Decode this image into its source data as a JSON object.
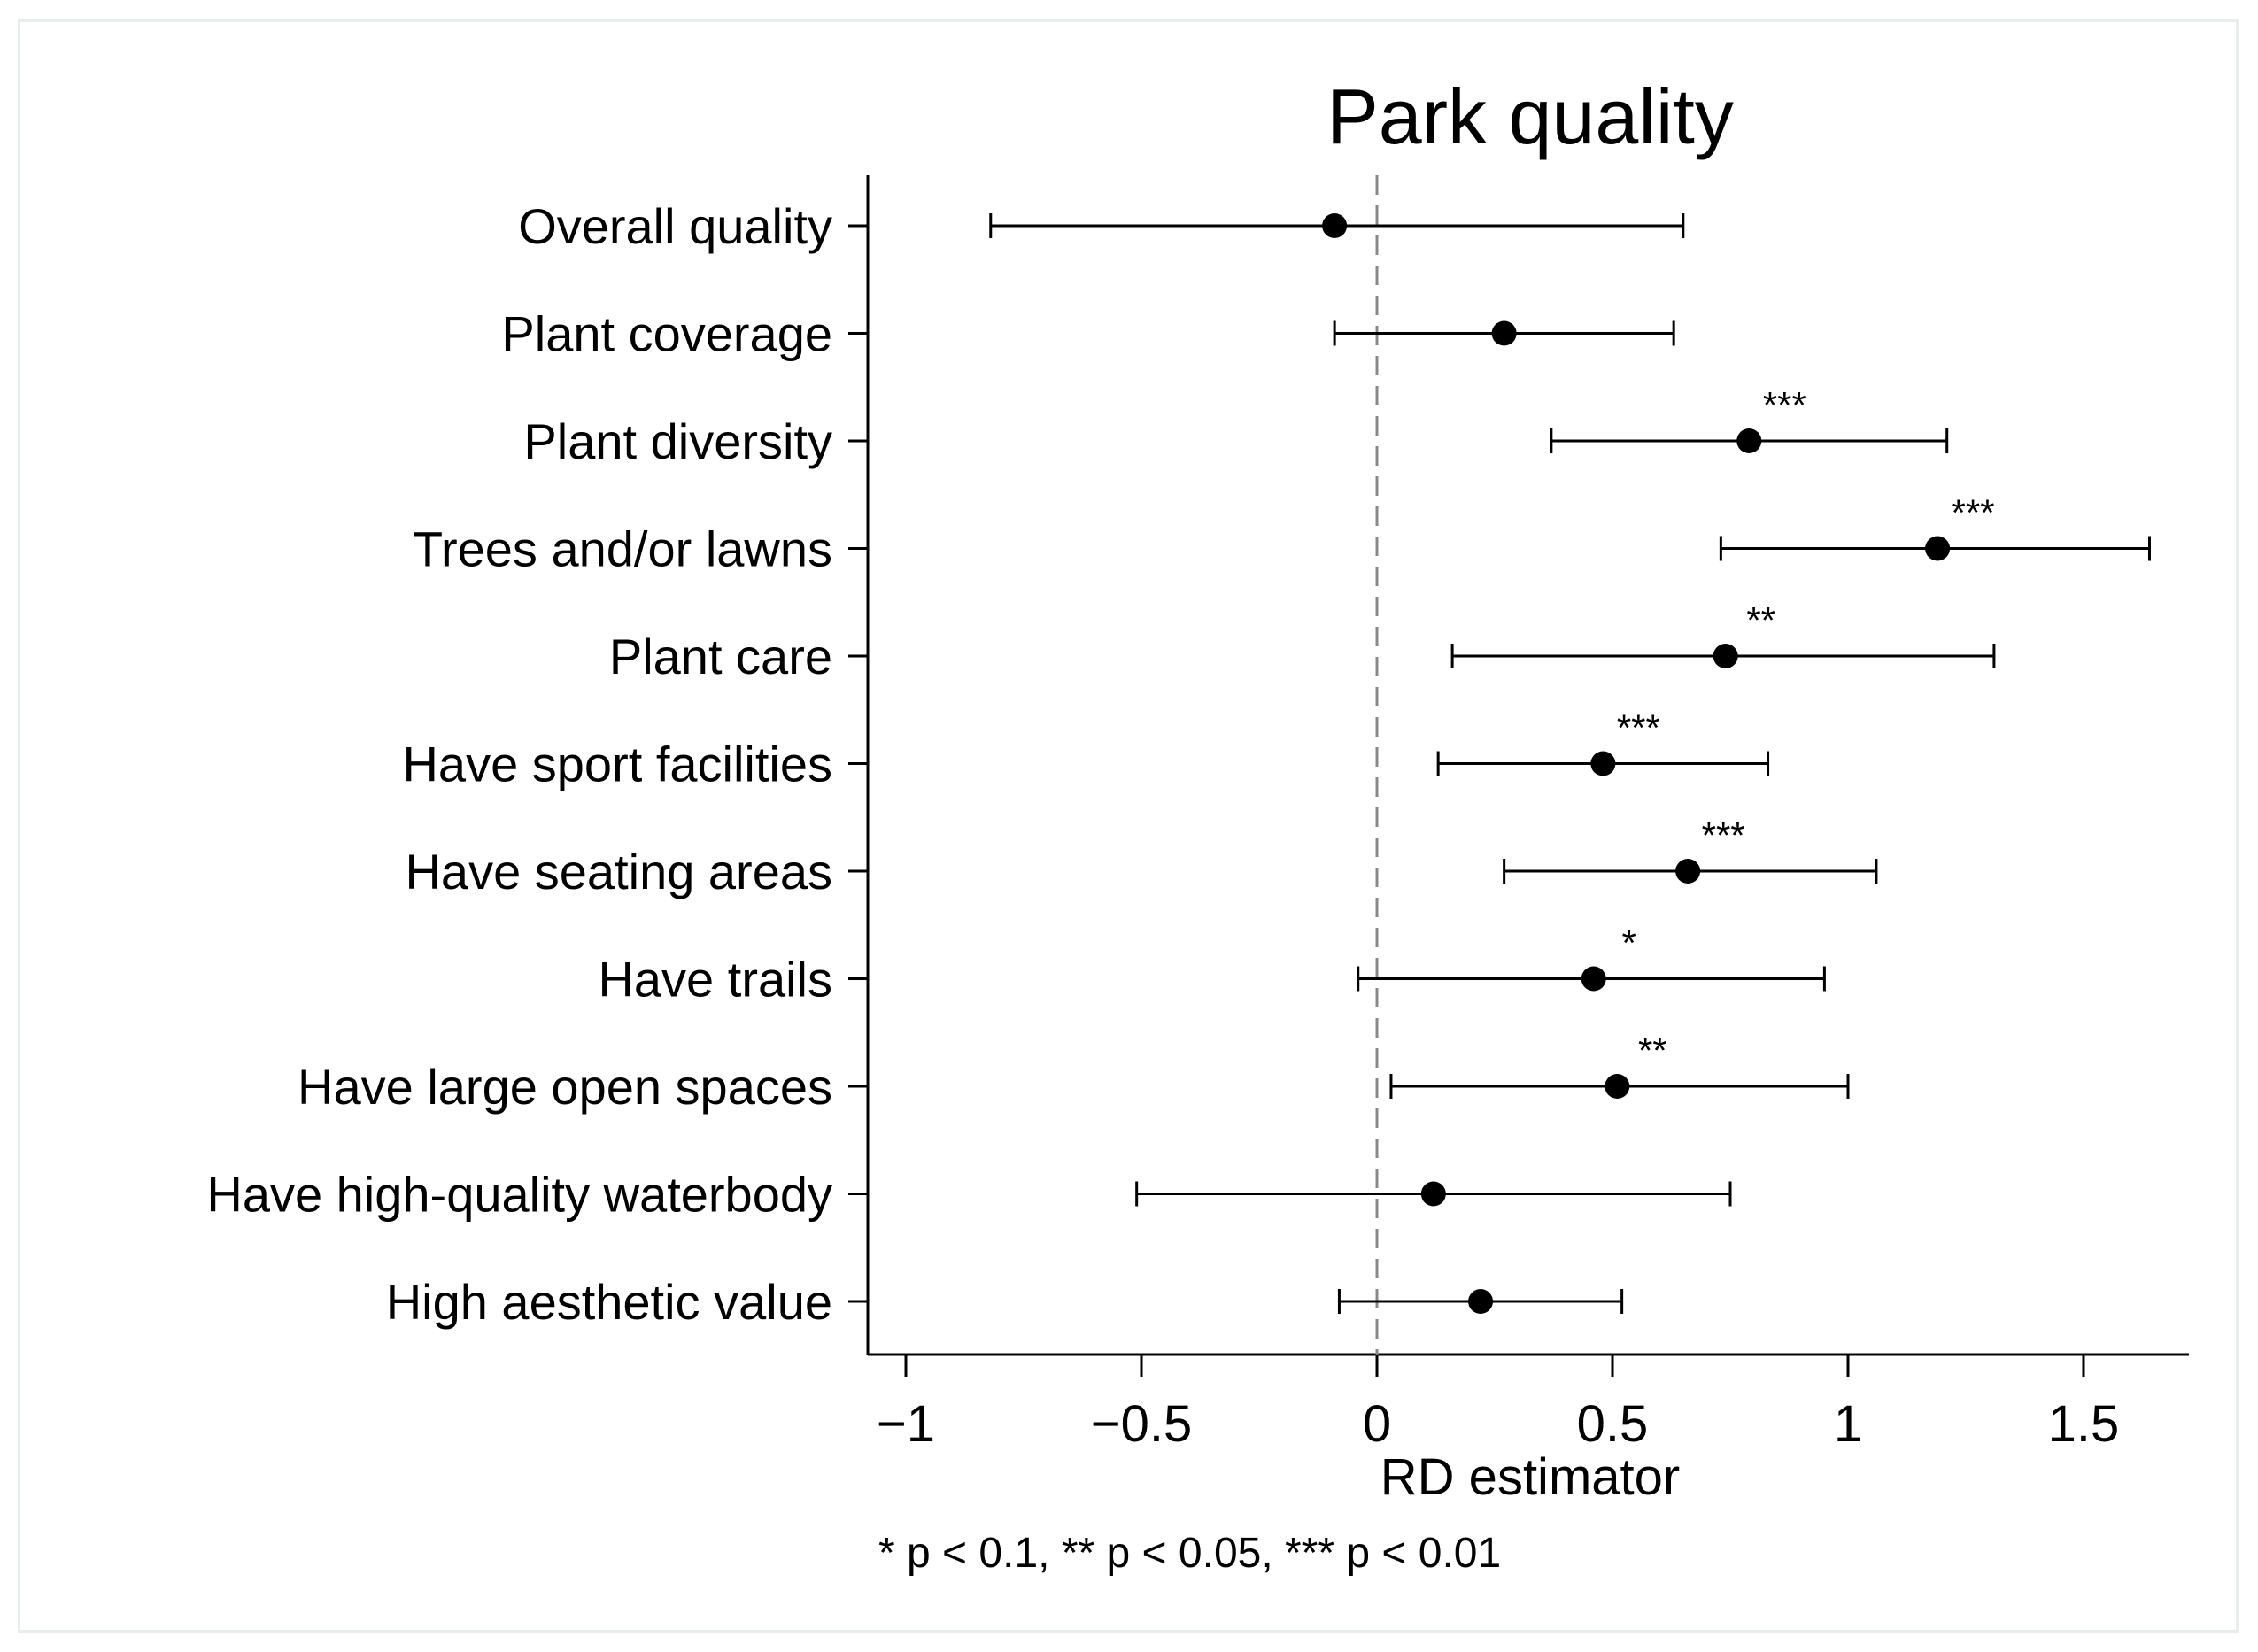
{
  "chart_data": {
    "type": "scatter",
    "subtype": "coefficient plot with 95% confidence intervals",
    "title": "Park quality",
    "xlabel": "RD estimator",
    "ylabel": "",
    "xlim": [
      -1.05,
      1.72
    ],
    "xticks": [
      -1,
      -0.5,
      0,
      0.5,
      1,
      1.5
    ],
    "xtick_labels": [
      "−1",
      "−0.5",
      "0",
      "0.5",
      "1",
      "1.5"
    ],
    "reference_line": 0,
    "note": "* p < 0.1, ** p < 0.05, *** p < 0.01",
    "marker_color": "#000000",
    "reference_line_color": "#888888",
    "categories": [
      "Overall quality",
      "Plant coverage",
      "Plant diversity",
      "Trees and/or lawns",
      "Plant care",
      "Have sport facilities",
      "Have seating areas",
      "Have trails",
      "Have large open spaces",
      "Have high-quality waterbody",
      "High aesthetic value"
    ],
    "estimates": [
      -0.09,
      0.27,
      0.79,
      1.19,
      0.74,
      0.48,
      0.66,
      0.46,
      0.51,
      0.12,
      0.22
    ],
    "ci_low": [
      -0.82,
      -0.09,
      0.37,
      0.73,
      0.16,
      0.13,
      0.27,
      -0.04,
      0.03,
      -0.51,
      -0.08
    ],
    "ci_high": [
      0.65,
      0.63,
      1.21,
      1.64,
      1.31,
      0.83,
      1.06,
      0.95,
      1.0,
      0.75,
      0.52
    ],
    "significance": [
      "",
      "",
      "***",
      "***",
      "**",
      "***",
      "***",
      "*",
      "**",
      "",
      ""
    ],
    "grid": false,
    "legend": "none"
  }
}
